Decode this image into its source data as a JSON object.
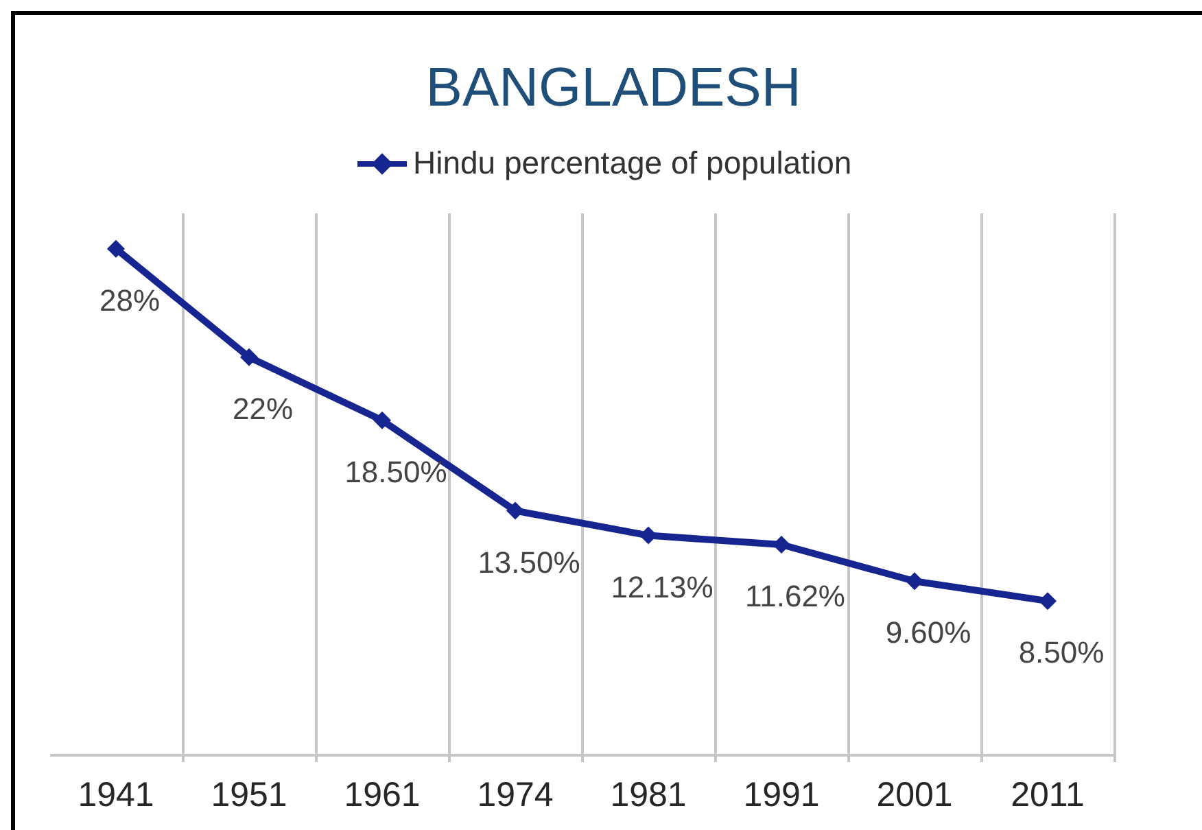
{
  "chart_data": {
    "type": "line",
    "title": "BANGLADESH",
    "categories": [
      "1941",
      "1951",
      "1961",
      "1974",
      "1981",
      "1991",
      "2001",
      "2011"
    ],
    "series": [
      {
        "name": "Hindu percentage of population",
        "color": "#16258f",
        "values": [
          28,
          22,
          18.5,
          13.5,
          12.13,
          11.62,
          9.6,
          8.5
        ],
        "value_labels": [
          "28%",
          "22%",
          "18.50%",
          "13.50%",
          "12.13%",
          "11.62%",
          "9.60%",
          "8.50%"
        ]
      }
    ],
    "grid": "x",
    "legend": "top",
    "marker": "diamond",
    "line_style": "solid"
  }
}
